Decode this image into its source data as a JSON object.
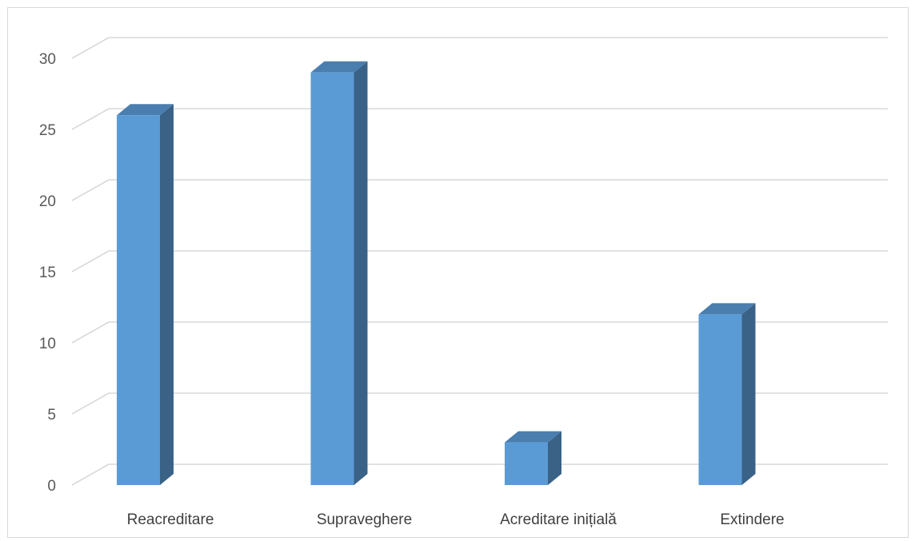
{
  "chart_data": {
    "type": "bar",
    "style": "3d-column",
    "categories": [
      "Reacreditare",
      "Supraveghere",
      "Acreditare inițială",
      "Extindere"
    ],
    "values": [
      26,
      29,
      3,
      12
    ],
    "ylim": [
      0,
      30
    ],
    "yticks": [
      0,
      5,
      10,
      15,
      20,
      25,
      30
    ],
    "ytick_labels": [
      "0",
      "5",
      "10",
      "15",
      "20",
      "25",
      "30"
    ],
    "grid": true,
    "legend": "none",
    "colors": {
      "bar_front": "#5b9bd5",
      "bar_side": "#3a6287",
      "bar_top": "#4a7eaf",
      "gridline": "#d9d9d9"
    }
  }
}
